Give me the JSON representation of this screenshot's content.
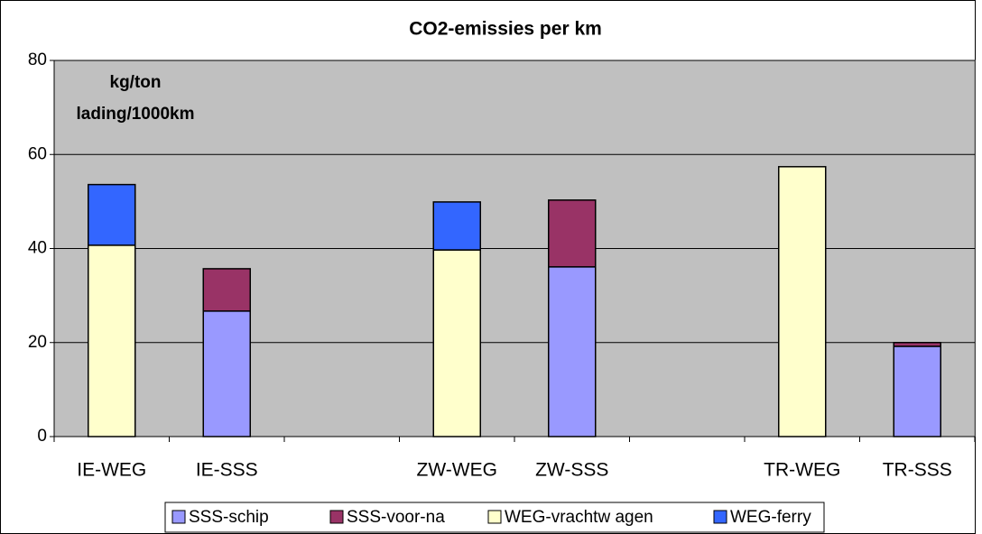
{
  "chart_data": {
    "type": "stacked_bar",
    "title": "CO2-emissies per km",
    "annotation": [
      "kg/ton",
      "lading/1000km"
    ],
    "categories": [
      "IE-WEG",
      "IE-SSS",
      null,
      "ZW-WEG",
      "ZW-SSS",
      null,
      "TR-WEG",
      "TR-SSS"
    ],
    "series": [
      {
        "name": "SSS-schip",
        "color": "#9999ff",
        "values": [
          null,
          26.7,
          null,
          null,
          36.1,
          null,
          null,
          19.2
        ]
      },
      {
        "name": "SSS-voor-na",
        "color": "#993366",
        "values": [
          null,
          9,
          null,
          null,
          14.2,
          null,
          null,
          0.8
        ]
      },
      {
        "name": "WEG-vrachtw agen",
        "color": "#ffffcc",
        "values": [
          40.7,
          null,
          null,
          39.7,
          null,
          null,
          57.4,
          null
        ]
      },
      {
        "name": "WEG-ferry",
        "color": "#3366ff",
        "values": [
          12.9,
          null,
          null,
          10.2,
          null,
          null,
          null,
          null
        ]
      }
    ],
    "ylim": [
      0,
      80
    ],
    "yticks": [
      0,
      20,
      40,
      60,
      80
    ],
    "grid": true,
    "legend": "bottom"
  }
}
